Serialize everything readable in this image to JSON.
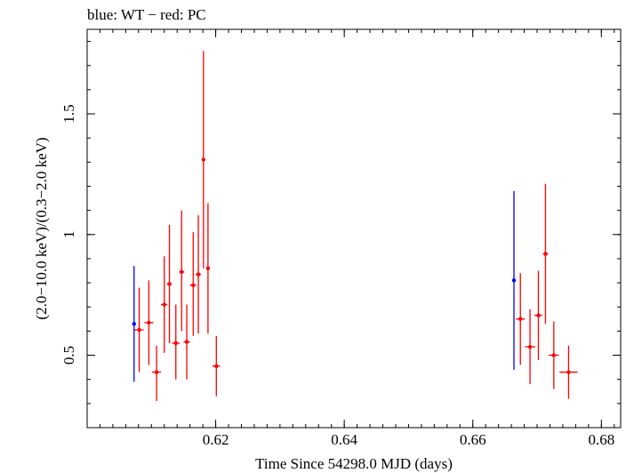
{
  "chart_data": {
    "type": "scatter",
    "title": "blue: WT − red: PC",
    "xlabel": "Time Since 54298.0 MJD (days)",
    "ylabel": "(2.0−10.0 keV)/(0.3−2.0 keV)",
    "xlim": [
      0.6,
      0.683
    ],
    "ylim": [
      0.2,
      1.85
    ],
    "xticks": [
      {
        "value": 0.62,
        "label": "0.62"
      },
      {
        "value": 0.64,
        "label": "0.64"
      },
      {
        "value": 0.66,
        "label": "0.66"
      },
      {
        "value": 0.68,
        "label": "0.68"
      }
    ],
    "yticks": [
      {
        "value": 0.5,
        "label": "0.5"
      },
      {
        "value": 1.0,
        "label": "1"
      },
      {
        "value": 1.5,
        "label": "1.5"
      }
    ],
    "x_minor_step": 0.002,
    "y_minor_step": 0.1,
    "grid": false,
    "series": [
      {
        "name": "WT",
        "color": "#0000ff",
        "points": [
          {
            "x": 0.6073,
            "y": 0.63,
            "xerr": 0.0,
            "ylo": 0.39,
            "yhi": 0.87
          },
          {
            "x": 0.6664,
            "y": 0.81,
            "xerr": 0.0,
            "ylo": 0.44,
            "yhi": 1.18
          }
        ]
      },
      {
        "name": "PC",
        "color": "#ff0000",
        "points": [
          {
            "x": 0.6081,
            "y": 0.605,
            "xerr": 0.0007,
            "ylo": 0.43,
            "yhi": 0.78
          },
          {
            "x": 0.6096,
            "y": 0.635,
            "xerr": 0.0007,
            "ylo": 0.46,
            "yhi": 0.81
          },
          {
            "x": 0.6108,
            "y": 0.43,
            "xerr": 0.0007,
            "ylo": 0.31,
            "yhi": 0.54
          },
          {
            "x": 0.612,
            "y": 0.71,
            "xerr": 0.0005,
            "ylo": 0.51,
            "yhi": 0.91
          },
          {
            "x": 0.6128,
            "y": 0.795,
            "xerr": 0.0004,
            "ylo": 0.55,
            "yhi": 1.04
          },
          {
            "x": 0.6138,
            "y": 0.55,
            "xerr": 0.0006,
            "ylo": 0.4,
            "yhi": 0.71
          },
          {
            "x": 0.6147,
            "y": 0.845,
            "xerr": 0.0004,
            "ylo": 0.6,
            "yhi": 1.1
          },
          {
            "x": 0.6155,
            "y": 0.555,
            "xerr": 0.0005,
            "ylo": 0.4,
            "yhi": 0.71
          },
          {
            "x": 0.6165,
            "y": 0.79,
            "xerr": 0.0005,
            "ylo": 0.58,
            "yhi": 1.01
          },
          {
            "x": 0.6173,
            "y": 0.835,
            "xerr": 0.0004,
            "ylo": 0.59,
            "yhi": 1.08
          },
          {
            "x": 0.6181,
            "y": 1.31,
            "xerr": 0.0002,
            "ylo": 0.86,
            "yhi": 1.76
          },
          {
            "x": 0.6188,
            "y": 0.86,
            "xerr": 0.0003,
            "ylo": 0.59,
            "yhi": 1.13
          },
          {
            "x": 0.6201,
            "y": 0.455,
            "xerr": 0.0006,
            "ylo": 0.33,
            "yhi": 0.58
          },
          {
            "x": 0.6674,
            "y": 0.65,
            "xerr": 0.0007,
            "ylo": 0.46,
            "yhi": 0.84
          },
          {
            "x": 0.6689,
            "y": 0.535,
            "xerr": 0.0008,
            "ylo": 0.38,
            "yhi": 0.69
          },
          {
            "x": 0.6702,
            "y": 0.665,
            "xerr": 0.0006,
            "ylo": 0.48,
            "yhi": 0.85
          },
          {
            "x": 0.6713,
            "y": 0.92,
            "xerr": 0.0004,
            "ylo": 0.63,
            "yhi": 1.21
          },
          {
            "x": 0.6726,
            "y": 0.5,
            "xerr": 0.0008,
            "ylo": 0.36,
            "yhi": 0.64
          },
          {
            "x": 0.6749,
            "y": 0.43,
            "xerr": 0.0014,
            "ylo": 0.32,
            "yhi": 0.54
          }
        ]
      }
    ]
  }
}
